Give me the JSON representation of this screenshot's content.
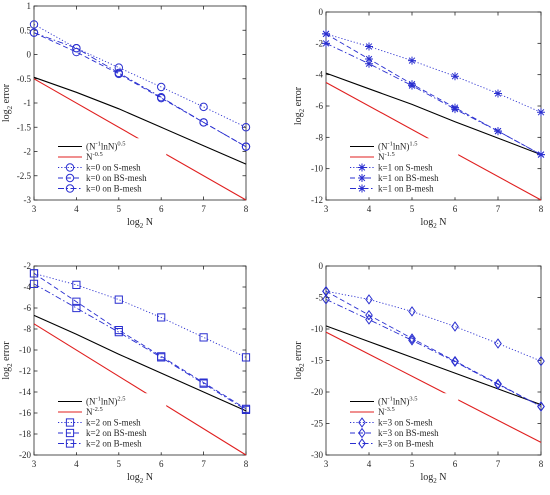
{
  "colors": {
    "blue": "#2a2fd0",
    "black": "#000000",
    "red": "#e01f1f",
    "axis": "#262626"
  },
  "chart_data": [
    {
      "type": "line",
      "xlabel": "log2 N",
      "ylabel": "log2 error",
      "xlabel_base": "log",
      "xlabel_sub": "2",
      "xlabel_rest": " N",
      "ylabel_base": "log",
      "ylabel_sub": "2",
      "ylabel_rest": " error",
      "xlim": [
        3,
        8
      ],
      "ylim": [
        -3,
        1
      ],
      "xticks": [
        "3",
        "4",
        "5",
        "6",
        "7",
        "8"
      ],
      "yticks": [
        "-3",
        "-2.5",
        "-2",
        "-1.5",
        "-1",
        "-0.5",
        "0",
        "0.5",
        "1"
      ],
      "legend_position": "bottom-left",
      "series": [
        {
          "name": "(N^-1 lnN)^0.5",
          "legend": [
            "(N",
            "-1",
            "lnN)",
            "0.5"
          ],
          "style": "solid",
          "color": "black",
          "marker": "none",
          "x": [
            3,
            4,
            5,
            6,
            7,
            8
          ],
          "y": [
            -0.47,
            -0.78,
            -1.12,
            -1.5,
            -1.88,
            -2.26
          ]
        },
        {
          "name": "N^-0.5",
          "legend": [
            "N",
            "-0.5"
          ],
          "style": "solid",
          "color": "red",
          "marker": "none",
          "x": [
            3,
            8
          ],
          "y": [
            -0.5,
            -3.0
          ]
        },
        {
          "name": "k=0 on S-mesh",
          "legend": [
            "k=0 on S-mesh"
          ],
          "style": "dotted",
          "color": "blue",
          "marker": "circle",
          "x": [
            3,
            4,
            5,
            6,
            7,
            8
          ],
          "y": [
            0.62,
            0.13,
            -0.27,
            -0.67,
            -1.08,
            -1.5
          ]
        },
        {
          "name": "k=0 on BS-mesh",
          "legend": [
            "k=0 on BS-mesh"
          ],
          "style": "dashed",
          "color": "blue",
          "marker": "circle",
          "x": [
            3,
            4,
            5,
            6,
            7,
            8
          ],
          "y": [
            0.45,
            0.05,
            -0.4,
            -0.9,
            -1.4,
            -1.9
          ]
        },
        {
          "name": "k=0 on B-mesh",
          "legend": [
            "k=0 on B-mesh"
          ],
          "style": "dashdot",
          "color": "blue",
          "marker": "circle",
          "x": [
            3,
            4,
            5,
            6,
            7,
            8
          ],
          "y": [
            0.45,
            0.13,
            -0.38,
            -0.88,
            -1.4,
            -1.9
          ]
        }
      ]
    },
    {
      "type": "line",
      "xlabel": "log2 N",
      "ylabel": "log2 error",
      "xlabel_base": "log",
      "xlabel_sub": "2",
      "xlabel_rest": " N",
      "ylabel_base": "log",
      "ylabel_sub": "2",
      "ylabel_rest": " error",
      "xlim": [
        3,
        8
      ],
      "ylim": [
        -12,
        0
      ],
      "xticks": [
        "3",
        "4",
        "5",
        "6",
        "7",
        "8"
      ],
      "yticks": [
        "-12",
        "-10",
        "-8",
        "-6",
        "-4",
        "-2",
        "0"
      ],
      "legend_position": "bottom-left",
      "series": [
        {
          "name": "(N^-1 lnN)^1.5",
          "legend": [
            "(N",
            "-1",
            "lnN)",
            "1.5"
          ],
          "style": "solid",
          "color": "black",
          "marker": "none",
          "x": [
            3,
            4,
            5,
            6,
            7,
            8
          ],
          "y": [
            -3.9,
            -4.9,
            -5.9,
            -7.0,
            -8.05,
            -9.1
          ]
        },
        {
          "name": "N^-1.5",
          "legend": [
            "N",
            "-1.5"
          ],
          "style": "solid",
          "color": "red",
          "marker": "none",
          "x": [
            3,
            8
          ],
          "y": [
            -4.5,
            -12.0
          ]
        },
        {
          "name": "k=1 on S-mesh",
          "legend": [
            "k=1 on S-mesh"
          ],
          "style": "dotted",
          "color": "blue",
          "marker": "star",
          "x": [
            3,
            4,
            5,
            6,
            7,
            8
          ],
          "y": [
            -1.4,
            -2.2,
            -3.1,
            -4.1,
            -5.2,
            -6.4
          ]
        },
        {
          "name": "k=1 on BS-mesh",
          "legend": [
            "k=1 on BS-mesh"
          ],
          "style": "dashed",
          "color": "blue",
          "marker": "star",
          "x": [
            3,
            4,
            5,
            6,
            7,
            8
          ],
          "y": [
            -1.4,
            -3.0,
            -4.6,
            -6.1,
            -7.6,
            -9.1
          ]
        },
        {
          "name": "k=1 on B-mesh",
          "legend": [
            "k=1 on B-mesh"
          ],
          "style": "dashdot",
          "color": "blue",
          "marker": "star",
          "x": [
            3,
            4,
            5,
            6,
            7,
            8
          ],
          "y": [
            -2.0,
            -3.3,
            -4.7,
            -6.2,
            -7.6,
            -9.1
          ]
        }
      ]
    },
    {
      "type": "line",
      "xlabel": "log2 N",
      "ylabel": "log2 error",
      "xlabel_base": "log",
      "xlabel_sub": "2",
      "xlabel_rest": " N",
      "ylabel_base": "log",
      "ylabel_sub": "2",
      "ylabel_rest": " error",
      "xlim": [
        3,
        8
      ],
      "ylim": [
        -20,
        -2
      ],
      "xticks": [
        "3",
        "4",
        "5",
        "6",
        "7",
        "8"
      ],
      "yticks": [
        "-20",
        "-18",
        "-16",
        "-14",
        "-12",
        "-10",
        "-8",
        "-6",
        "-4",
        "-2"
      ],
      "legend_position": "bottom-left",
      "series": [
        {
          "name": "(N^-1 lnN)^2.5",
          "legend": [
            "(N",
            "-1",
            "lnN)",
            "2.5"
          ],
          "style": "solid",
          "color": "black",
          "marker": "none",
          "x": [
            3,
            4,
            5,
            6,
            7,
            8
          ],
          "y": [
            -6.7,
            -8.5,
            -10.4,
            -12.2,
            -14.0,
            -15.8
          ]
        },
        {
          "name": "N^-2.5",
          "legend": [
            "N",
            "-2.5"
          ],
          "style": "solid",
          "color": "red",
          "marker": "none",
          "x": [
            3,
            8
          ],
          "y": [
            -7.5,
            -20.0
          ]
        },
        {
          "name": "k=2 on S-mesh",
          "legend": [
            "k=2 on S-mesh"
          ],
          "style": "dotted",
          "color": "blue",
          "marker": "square",
          "x": [
            3,
            4,
            5,
            6,
            7,
            8
          ],
          "y": [
            -2.7,
            -3.8,
            -5.2,
            -6.9,
            -8.8,
            -10.7
          ]
        },
        {
          "name": "k=2 on BS-mesh",
          "legend": [
            "k=2 on BS-mesh"
          ],
          "style": "dashed",
          "color": "blue",
          "marker": "square",
          "x": [
            3,
            4,
            5,
            6,
            7,
            8
          ],
          "y": [
            -2.7,
            -5.4,
            -8.1,
            -10.6,
            -13.1,
            -15.6
          ]
        },
        {
          "name": "k=2 on B-mesh",
          "legend": [
            "k=2 on B-mesh"
          ],
          "style": "dashdot",
          "color": "blue",
          "marker": "square",
          "x": [
            3,
            4,
            5,
            6,
            7,
            8
          ],
          "y": [
            -3.7,
            -6.0,
            -8.3,
            -10.7,
            -13.2,
            -15.7
          ]
        }
      ]
    },
    {
      "type": "line",
      "xlabel": "log2 N",
      "ylabel": "log2 error",
      "xlabel_base": "log",
      "xlabel_sub": "2",
      "xlabel_rest": " N",
      "ylabel_base": "log",
      "ylabel_sub": "2",
      "ylabel_rest": " error",
      "xlim": [
        3,
        8
      ],
      "ylim": [
        -30,
        0
      ],
      "xticks": [
        "3",
        "4",
        "5",
        "6",
        "7",
        "8"
      ],
      "yticks": [
        "-30",
        "-25",
        "-20",
        "-15",
        "-10",
        "-5",
        "0"
      ],
      "legend_position": "bottom-left",
      "series": [
        {
          "name": "(N^-1 lnN)^3.5",
          "legend": [
            "(N",
            "-1",
            "lnN)",
            "3.5"
          ],
          "style": "solid",
          "color": "black",
          "marker": "none",
          "x": [
            3,
            4,
            5,
            6,
            7,
            8
          ],
          "y": [
            -9.5,
            -12.0,
            -14.5,
            -17.0,
            -19.5,
            -22.0
          ]
        },
        {
          "name": "N^-3.5",
          "legend": [
            "N",
            "-3.5"
          ],
          "style": "solid",
          "color": "red",
          "marker": "none",
          "x": [
            3,
            8
          ],
          "y": [
            -10.5,
            -28.0
          ]
        },
        {
          "name": "k=3 on S-mesh",
          "legend": [
            "k=3 on S-mesh"
          ],
          "style": "dotted",
          "color": "blue",
          "marker": "diamond",
          "x": [
            3,
            4,
            5,
            6,
            7,
            8
          ],
          "y": [
            -4.0,
            -5.3,
            -7.2,
            -9.6,
            -12.3,
            -15.1
          ]
        },
        {
          "name": "k=3 on BS-mesh",
          "legend": [
            "k=3 on BS-mesh"
          ],
          "style": "dashed",
          "color": "blue",
          "marker": "diamond",
          "x": [
            3,
            4,
            5,
            6,
            7,
            8
          ],
          "y": [
            -4.0,
            -7.8,
            -11.5,
            -15.1,
            -18.7,
            -22.3
          ]
        },
        {
          "name": "k=3 on B-mesh",
          "legend": [
            "k=3 on B-mesh"
          ],
          "style": "dashdot",
          "color": "blue",
          "marker": "diamond",
          "x": [
            3,
            4,
            5,
            6,
            7,
            8
          ],
          "y": [
            -5.3,
            -8.5,
            -11.8,
            -15.2,
            -18.8,
            -22.3
          ]
        }
      ]
    }
  ]
}
